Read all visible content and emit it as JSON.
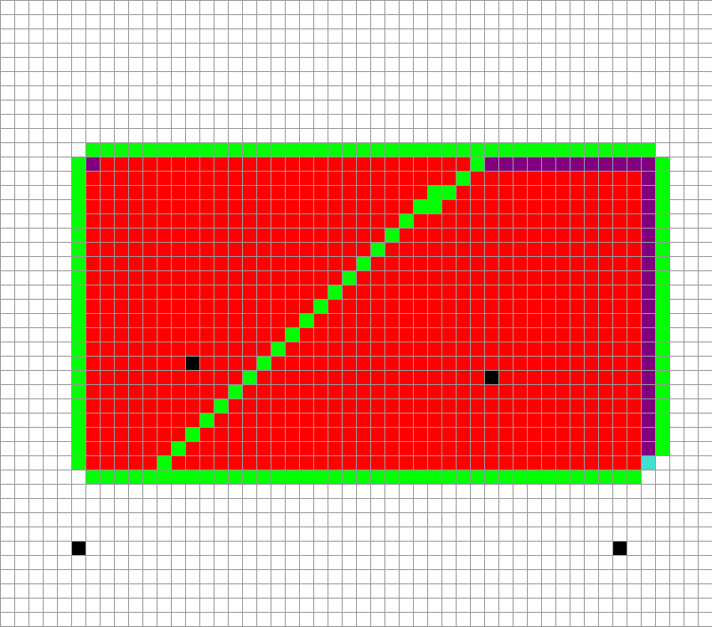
{
  "grid": {
    "cols": 50,
    "rows": 44,
    "background": "#ffffff",
    "line_color": "#9a9a9a"
  },
  "palette": {
    "green": "#00ff00",
    "red": "#ff0000",
    "purple": "#800080",
    "cyan": "#40e0d0",
    "black": "#000000"
  },
  "shapes": {
    "red_rect": {
      "color": "red",
      "col_start": 6,
      "col_end": 44,
      "row_start": 11,
      "row_end": 32
    },
    "green_border_top": {
      "color": "green",
      "col_start": 6,
      "col_end": 45,
      "row": 10
    },
    "green_border_bottom": {
      "color": "green",
      "col_start": 6,
      "col_end": 44,
      "row": 33
    },
    "green_border_left": {
      "color": "green",
      "col": 5,
      "row_start": 11,
      "row_end": 32
    },
    "green_border_right": {
      "color": "green",
      "col": 46,
      "row_start": 11,
      "row_end": 31
    },
    "purple_top": {
      "color": "purple",
      "col_start": 34,
      "col_end": 45,
      "row": 11
    },
    "purple_right": {
      "color": "purple",
      "col": 45,
      "row_start": 12,
      "row_end": 31
    },
    "purple_corner": {
      "color": "purple",
      "col": 6,
      "row": 11
    },
    "cyan_cell": {
      "color": "cyan",
      "col": 45,
      "row": 32
    }
  },
  "diagonal_cells": [
    [
      33,
      11
    ],
    [
      32,
      12
    ],
    [
      31,
      13
    ],
    [
      30,
      13
    ],
    [
      30,
      14
    ],
    [
      29,
      14
    ],
    [
      28,
      15
    ],
    [
      27,
      16
    ],
    [
      26,
      17
    ],
    [
      25,
      18
    ],
    [
      24,
      19
    ],
    [
      23,
      20
    ],
    [
      22,
      21
    ],
    [
      21,
      22
    ],
    [
      20,
      23
    ],
    [
      19,
      24
    ],
    [
      18,
      25
    ],
    [
      17,
      26
    ],
    [
      16,
      27
    ],
    [
      15,
      28
    ],
    [
      14,
      29
    ],
    [
      13,
      30
    ],
    [
      12,
      31
    ],
    [
      11,
      32
    ]
  ],
  "black_cells": [
    [
      13,
      25
    ],
    [
      34,
      26
    ],
    [
      5,
      38
    ],
    [
      43,
      38
    ]
  ]
}
